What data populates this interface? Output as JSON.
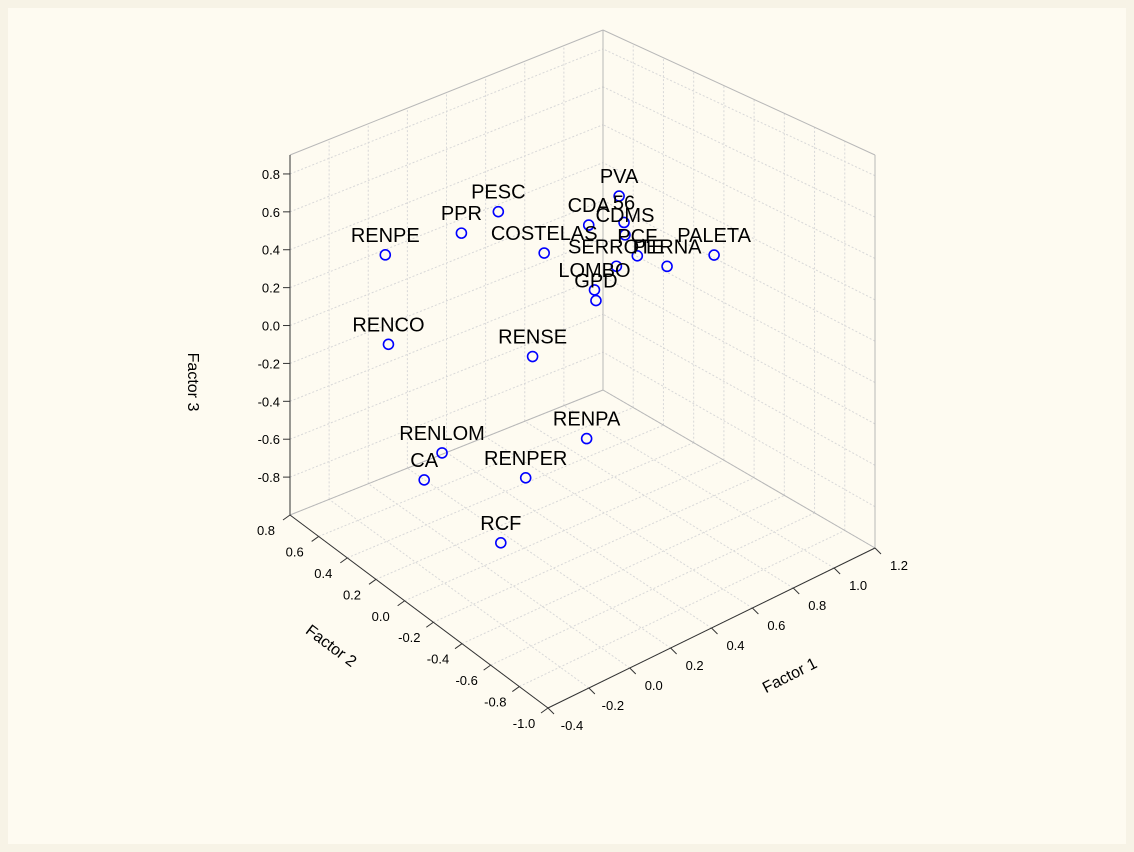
{
  "chart_data": {
    "type": "scatter3d",
    "x_label": "Factor 1",
    "y_label": "Factor 2",
    "z_label": "Factor 3",
    "color": "#0000ff",
    "grid": true,
    "labels": [
      "PVA",
      "CDA",
      "56",
      "CDMS",
      "PCF",
      "SERROTE",
      "PERNA",
      "PALETA",
      "COSTELAS",
      "LOMBO",
      "GPD",
      "PESC",
      "PPR",
      "RENPE",
      "RENCO",
      "RENSE",
      "RENPA",
      "RENLOM",
      "CA",
      "RENPER",
      "RCF"
    ],
    "x": [
      0.66,
      0.53,
      0.64,
      0.63,
      0.61,
      0.55,
      0.64,
      0.77,
      0.41,
      0.47,
      0.47,
      0.29,
      0.17,
      -0.12,
      -0.17,
      0.3,
      0.35,
      -0.06,
      -0.15,
      0.17,
      -0.02
    ],
    "y": [
      -0.02,
      0.01,
      -0.08,
      -0.1,
      -0.21,
      -0.15,
      -0.37,
      -0.51,
      0.15,
      -0.11,
      -0.12,
      0.3,
      0.39,
      0.52,
      0.43,
      0.08,
      -0.22,
      0.21,
      0.21,
      -0.05,
      -0.14
    ],
    "z": [
      0.6,
      0.5,
      0.5,
      0.45,
      0.4,
      0.35,
      0.4,
      0.45,
      0.35,
      0.25,
      0.2,
      0.55,
      0.45,
      0.4,
      0.0,
      -0.1,
      -0.4,
      -0.5,
      -0.6,
      -0.6,
      -0.8
    ],
    "xlim": [
      -0.4,
      1.2
    ],
    "xticks": [
      -0.4,
      -0.2,
      {
        "value": 0,
        "label": "0.0"
      },
      0.2,
      0.4,
      0.6,
      0.8,
      {
        "value": 1,
        "label": "1.0"
      },
      1.2
    ],
    "ylim": [
      -1.0,
      0.8
    ],
    "yticks": [
      {
        "value": -1,
        "label": "-1.0"
      },
      -0.8,
      -0.6,
      -0.4,
      -0.2,
      {
        "value": 0,
        "label": "0.0"
      },
      0.2,
      0.4,
      0.6,
      0.8
    ],
    "zlim": [
      -1.0,
      0.9
    ],
    "zticks": [
      -0.8,
      -0.6,
      -0.4,
      -0.2,
      {
        "value": 0,
        "label": "0.0"
      },
      0.2,
      0.4,
      0.6,
      0.8
    ]
  }
}
